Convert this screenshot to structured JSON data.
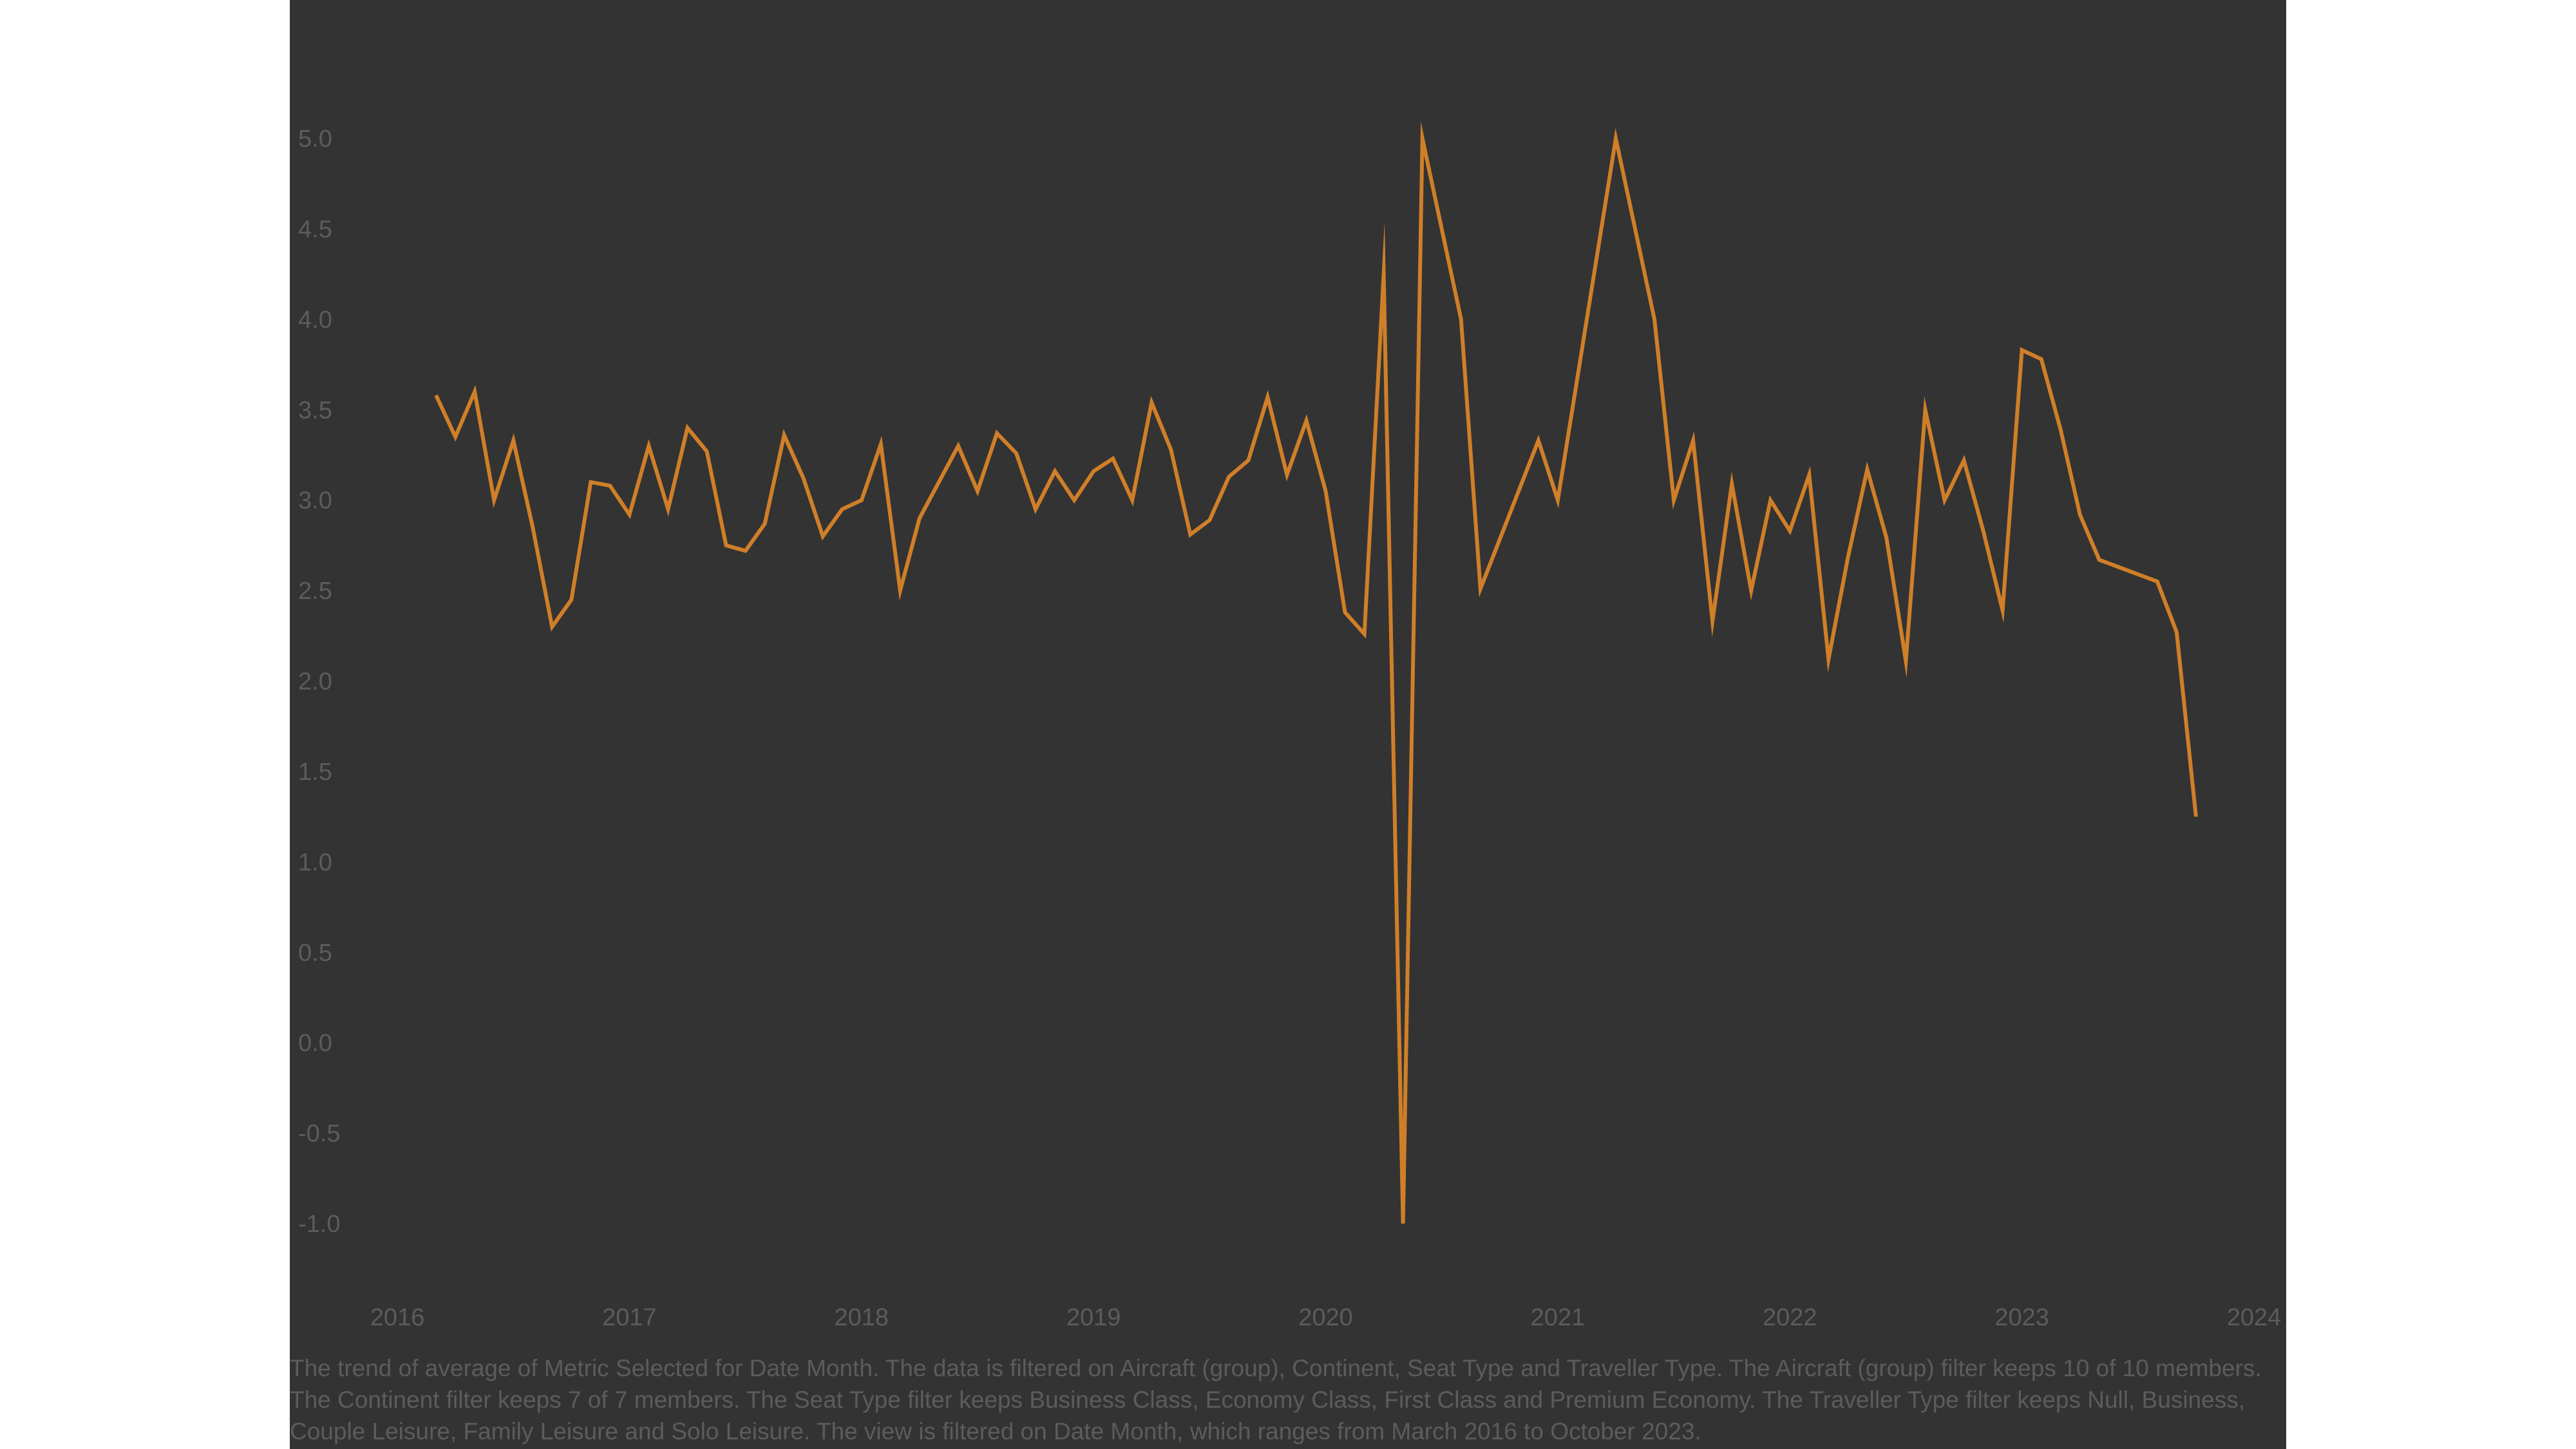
{
  "chart_data": {
    "type": "line",
    "title": "",
    "xlabel": "",
    "ylabel": "",
    "ylim": [
      -1.0,
      5.0
    ],
    "yticks": [
      "5.0",
      "4.5",
      "4.0",
      "3.5",
      "3.0",
      "2.5",
      "2.0",
      "1.5",
      "1.0",
      "0.5",
      "0.0",
      "-0.5",
      "-1.0"
    ],
    "xticks": [
      "2016",
      "2017",
      "2018",
      "2019",
      "2020",
      "2021",
      "2022",
      "2023",
      "2024"
    ],
    "line_color": "#d07f28",
    "series": [
      {
        "x": [
          "2016-03",
          "2016-04",
          "2016-05",
          "2016-06",
          "2016-07",
          "2016-08",
          "2016-09",
          "2016-10",
          "2016-11",
          "2016-12",
          "2017-01",
          "2017-02",
          "2017-03",
          "2017-04",
          "2017-05",
          "2017-06",
          "2017-07",
          "2017-08",
          "2017-09",
          "2017-10",
          "2017-11",
          "2017-12",
          "2018-01",
          "2018-02",
          "2018-03",
          "2018-04",
          "2018-05",
          "2018-06",
          "2018-07",
          "2018-08",
          "2018-09",
          "2018-10",
          "2018-11",
          "2018-12",
          "2019-01",
          "2019-02",
          "2019-03",
          "2019-04",
          "2019-05",
          "2019-06",
          "2019-07",
          "2019-08",
          "2019-09",
          "2019-10",
          "2019-11",
          "2019-12",
          "2020-01",
          "2020-02",
          "2020-03",
          "2020-04",
          "2020-05",
          "2020-06",
          "2020-08",
          "2020-09",
          "2020-12",
          "2021-01",
          "2021-04",
          "2021-06",
          "2021-07",
          "2021-08",
          "2021-09",
          "2021-10",
          "2021-11",
          "2021-12",
          "2022-01",
          "2022-02",
          "2022-03",
          "2022-04",
          "2022-05",
          "2022-06",
          "2022-07",
          "2022-08",
          "2022-09",
          "2022-10",
          "2022-11",
          "2022-12",
          "2023-01",
          "2023-02",
          "2023-03",
          "2023-04",
          "2023-05",
          "2023-08",
          "2023-09",
          "2023-10"
        ],
        "values": [
          3.58,
          3.35,
          3.6,
          3.0,
          3.33,
          2.85,
          2.3,
          2.45,
          3.1,
          3.08,
          2.92,
          3.3,
          2.95,
          3.4,
          3.27,
          2.75,
          2.72,
          2.87,
          3.36,
          3.12,
          2.8,
          2.95,
          3.0,
          3.31,
          2.5,
          2.9,
          3.1,
          3.3,
          3.05,
          3.37,
          3.26,
          2.95,
          3.16,
          3.0,
          3.16,
          3.23,
          3.0,
          3.54,
          3.28,
          2.81,
          2.89,
          3.13,
          3.22,
          3.57,
          3.14,
          3.44,
          3.05,
          2.38,
          2.26,
          4.25,
          -1.0,
          5.0,
          4.0,
          2.51,
          3.33,
          3.0,
          5.0,
          4.0,
          3.0,
          3.33,
          2.33,
          3.09,
          2.5,
          3.0,
          2.83,
          3.14,
          2.12,
          2.68,
          3.17,
          2.79,
          2.11,
          3.5,
          3.0,
          3.22,
          2.83,
          2.39,
          3.83,
          3.78,
          3.39,
          2.92,
          2.67,
          2.55,
          2.27,
          1.25
        ]
      }
    ]
  },
  "caption": "The trend of average of Metric Selected for Date Month. The data is filtered on Aircraft (group), Continent, Seat Type and Traveller Type. The Aircraft (group) filter keeps 10 of 10 members. The Continent filter keeps 7 of 7 members. The Seat Type filter keeps Business Class, Economy Class, First Class and Premium Economy. The Traveller Type filter keeps Null, Business, Couple Leisure, Family Leisure and Solo Leisure. The view is filtered on Date Month, which ranges from March 2016 to October 2023."
}
